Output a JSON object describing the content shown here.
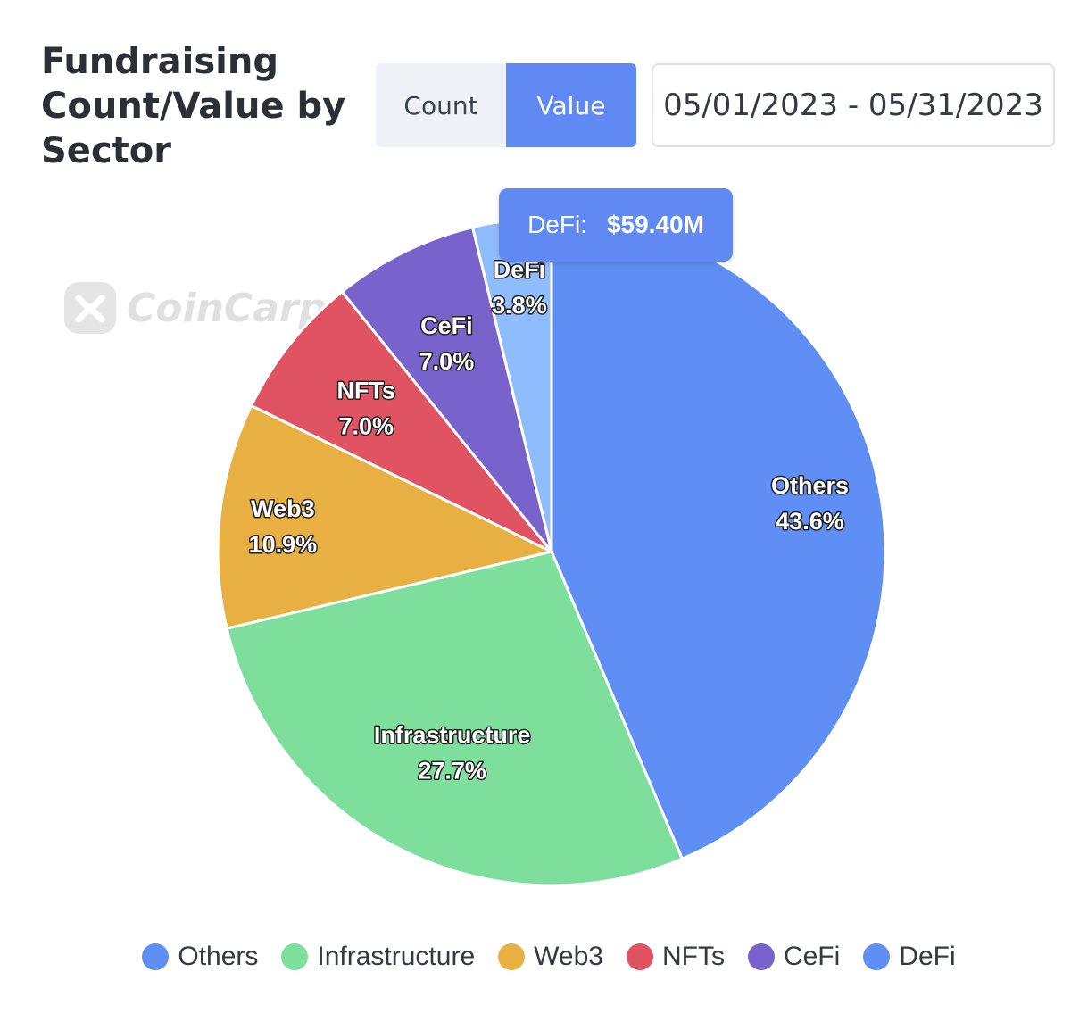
{
  "header": {
    "title": "Fundraising Count/Value by Sector",
    "toggle": {
      "count_label": "Count",
      "value_label": "Value",
      "selected": "Value"
    },
    "date_range": "05/01/2023 - 05/31/2023"
  },
  "watermark": {
    "text": "CoinCarp.com"
  },
  "tooltip": {
    "label": "DeFi:",
    "value": "$59.40M"
  },
  "colors": {
    "Others": "#5f8ef4",
    "Infrastructure": "#7ede9c",
    "Web3": "#e8b043",
    "NFTs": "#df5362",
    "CeFi": "#7862cb",
    "DeFi": "#8fbcfc",
    "DeFi_legend": "#5f8ef4"
  },
  "chart_data": {
    "type": "pie",
    "slices": [
      {
        "name": "Others",
        "value": 43.6,
        "label": "43.6%"
      },
      {
        "name": "Infrastructure",
        "value": 27.7,
        "label": "27.7%"
      },
      {
        "name": "Web3",
        "value": 10.9,
        "label": "10.9%"
      },
      {
        "name": "NFTs",
        "value": 7.0,
        "label": "7.0%"
      },
      {
        "name": "CeFi",
        "value": 7.0,
        "label": "7.0%"
      },
      {
        "name": "DeFi",
        "value": 3.8,
        "label": "3.8%"
      }
    ],
    "start": "12 o'clock",
    "direction": "clockwise",
    "legend": {
      "position": "bottom",
      "items": [
        "Others",
        "Infrastructure",
        "Web3",
        "NFTs",
        "CeFi",
        "DeFi"
      ]
    }
  }
}
